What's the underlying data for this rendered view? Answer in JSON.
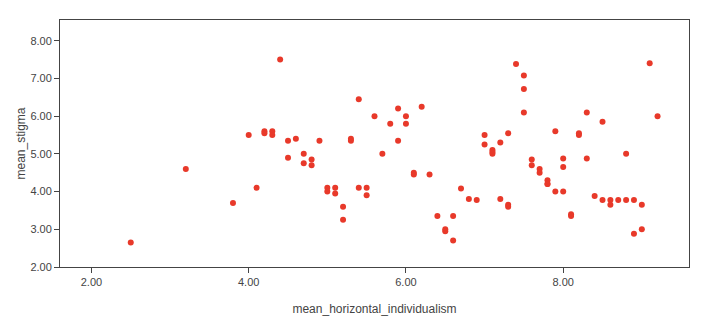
{
  "chart_data": {
    "type": "scatter",
    "x": [
      2.5,
      3.2,
      3.8,
      4.0,
      4.1,
      4.2,
      4.2,
      4.3,
      4.3,
      4.4,
      4.5,
      4.5,
      4.6,
      4.7,
      4.7,
      4.8,
      4.8,
      4.9,
      5.0,
      5.0,
      5.1,
      5.1,
      5.2,
      5.2,
      5.3,
      5.3,
      5.4,
      5.4,
      5.5,
      5.5,
      5.6,
      5.7,
      5.8,
      5.9,
      5.9,
      6.0,
      6.0,
      6.1,
      6.1,
      6.2,
      6.3,
      6.4,
      6.5,
      6.5,
      6.6,
      6.6,
      6.7,
      6.8,
      6.9,
      7.0,
      7.0,
      7.1,
      7.1,
      7.1,
      7.2,
      7.2,
      7.3,
      7.3,
      7.3,
      7.4,
      7.5,
      7.5,
      7.5,
      7.6,
      7.6,
      7.7,
      7.7,
      7.8,
      7.8,
      7.8,
      7.9,
      7.9,
      8.0,
      8.0,
      8.0,
      8.1,
      8.1,
      8.2,
      8.2,
      8.3,
      8.3,
      8.4,
      8.5,
      8.5,
      8.6,
      8.6,
      8.7,
      8.8,
      8.8,
      8.9,
      8.9,
      9.0,
      9.0,
      9.1,
      9.2
    ],
    "values": [
      2.65,
      4.6,
      3.7,
      5.5,
      4.1,
      5.6,
      5.55,
      5.6,
      5.5,
      7.5,
      4.9,
      5.35,
      5.4,
      4.75,
      5.0,
      4.85,
      4.7,
      5.35,
      4.1,
      4.0,
      4.1,
      3.95,
      3.6,
      3.25,
      5.35,
      5.4,
      6.45,
      4.1,
      4.1,
      3.9,
      6.0,
      5.0,
      5.8,
      6.2,
      5.35,
      6.0,
      5.8,
      4.5,
      4.45,
      6.25,
      4.45,
      3.35,
      3.0,
      2.95,
      2.7,
      3.35,
      4.08,
      3.8,
      3.78,
      5.5,
      5.25,
      5.0,
      5.1,
      5.05,
      5.3,
      3.8,
      5.55,
      3.65,
      3.6,
      7.38,
      7.08,
      6.72,
      6.1,
      4.85,
      4.7,
      4.6,
      4.5,
      4.3,
      4.2,
      4.2,
      5.6,
      4.0,
      4.88,
      4.65,
      4.0,
      3.4,
      3.35,
      5.5,
      5.55,
      6.1,
      4.88,
      3.88,
      5.85,
      3.78,
      3.78,
      3.65,
      3.78,
      5.0,
      3.78,
      2.88,
      3.78,
      3.0,
      3.65,
      7.4,
      6.0
    ],
    "color": "#E8392A",
    "xlabel": "mean_horizontal_individualism",
    "ylabel": "mean_stigma",
    "xlim": [
      1.6,
      9.6
    ],
    "ylim": [
      2.0,
      8.55
    ],
    "xticks": [
      {
        "value": 2.0,
        "label": "2.00"
      },
      {
        "value": 4.0,
        "label": "4.00"
      },
      {
        "value": 6.0,
        "label": "6.00"
      },
      {
        "value": 8.0,
        "label": "8.00"
      }
    ],
    "yticks": [
      {
        "value": 2.0,
        "label": "2.00"
      },
      {
        "value": 3.0,
        "label": "3.00"
      },
      {
        "value": 4.0,
        "label": "4.00"
      },
      {
        "value": 5.0,
        "label": "5.00"
      },
      {
        "value": 6.0,
        "label": "6.00"
      },
      {
        "value": 7.0,
        "label": "7.00"
      },
      {
        "value": 8.0,
        "label": "8.00"
      }
    ],
    "grid": false
  }
}
